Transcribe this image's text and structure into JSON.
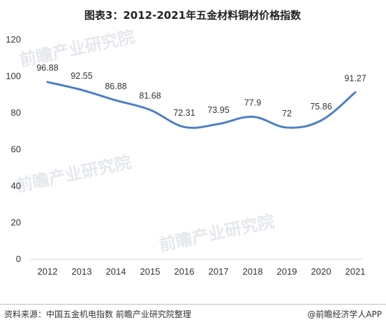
{
  "watermark": "前瞻产业研究院",
  "footer": {
    "source": "资料来源：中国五金机电指数 前瞻产业研究院整理",
    "brand": "@前瞻经济学人APP"
  },
  "chart_data": {
    "type": "line",
    "title": "图表3：2012-2021年五金材料铜材价格指数",
    "categories": [
      "2012",
      "2013",
      "2014",
      "2015",
      "2016",
      "2017",
      "2018",
      "2019",
      "2020",
      "2021"
    ],
    "series": [
      {
        "values": [
          96.88,
          92.55,
          86.88,
          81.68,
          72.31,
          73.95,
          77.9,
          72,
          75.86,
          91.27
        ],
        "labels": [
          "96.88",
          "92.55",
          "86.88",
          "81.68",
          "72.31",
          "73.95",
          "77.9",
          "72",
          "75.86",
          "91.27"
        ],
        "color": "#4a80c4"
      }
    ],
    "yticks": [
      0,
      20,
      40,
      60,
      80,
      100,
      120
    ],
    "ylim": [
      0,
      120
    ],
    "grid": false,
    "smooth": true
  }
}
